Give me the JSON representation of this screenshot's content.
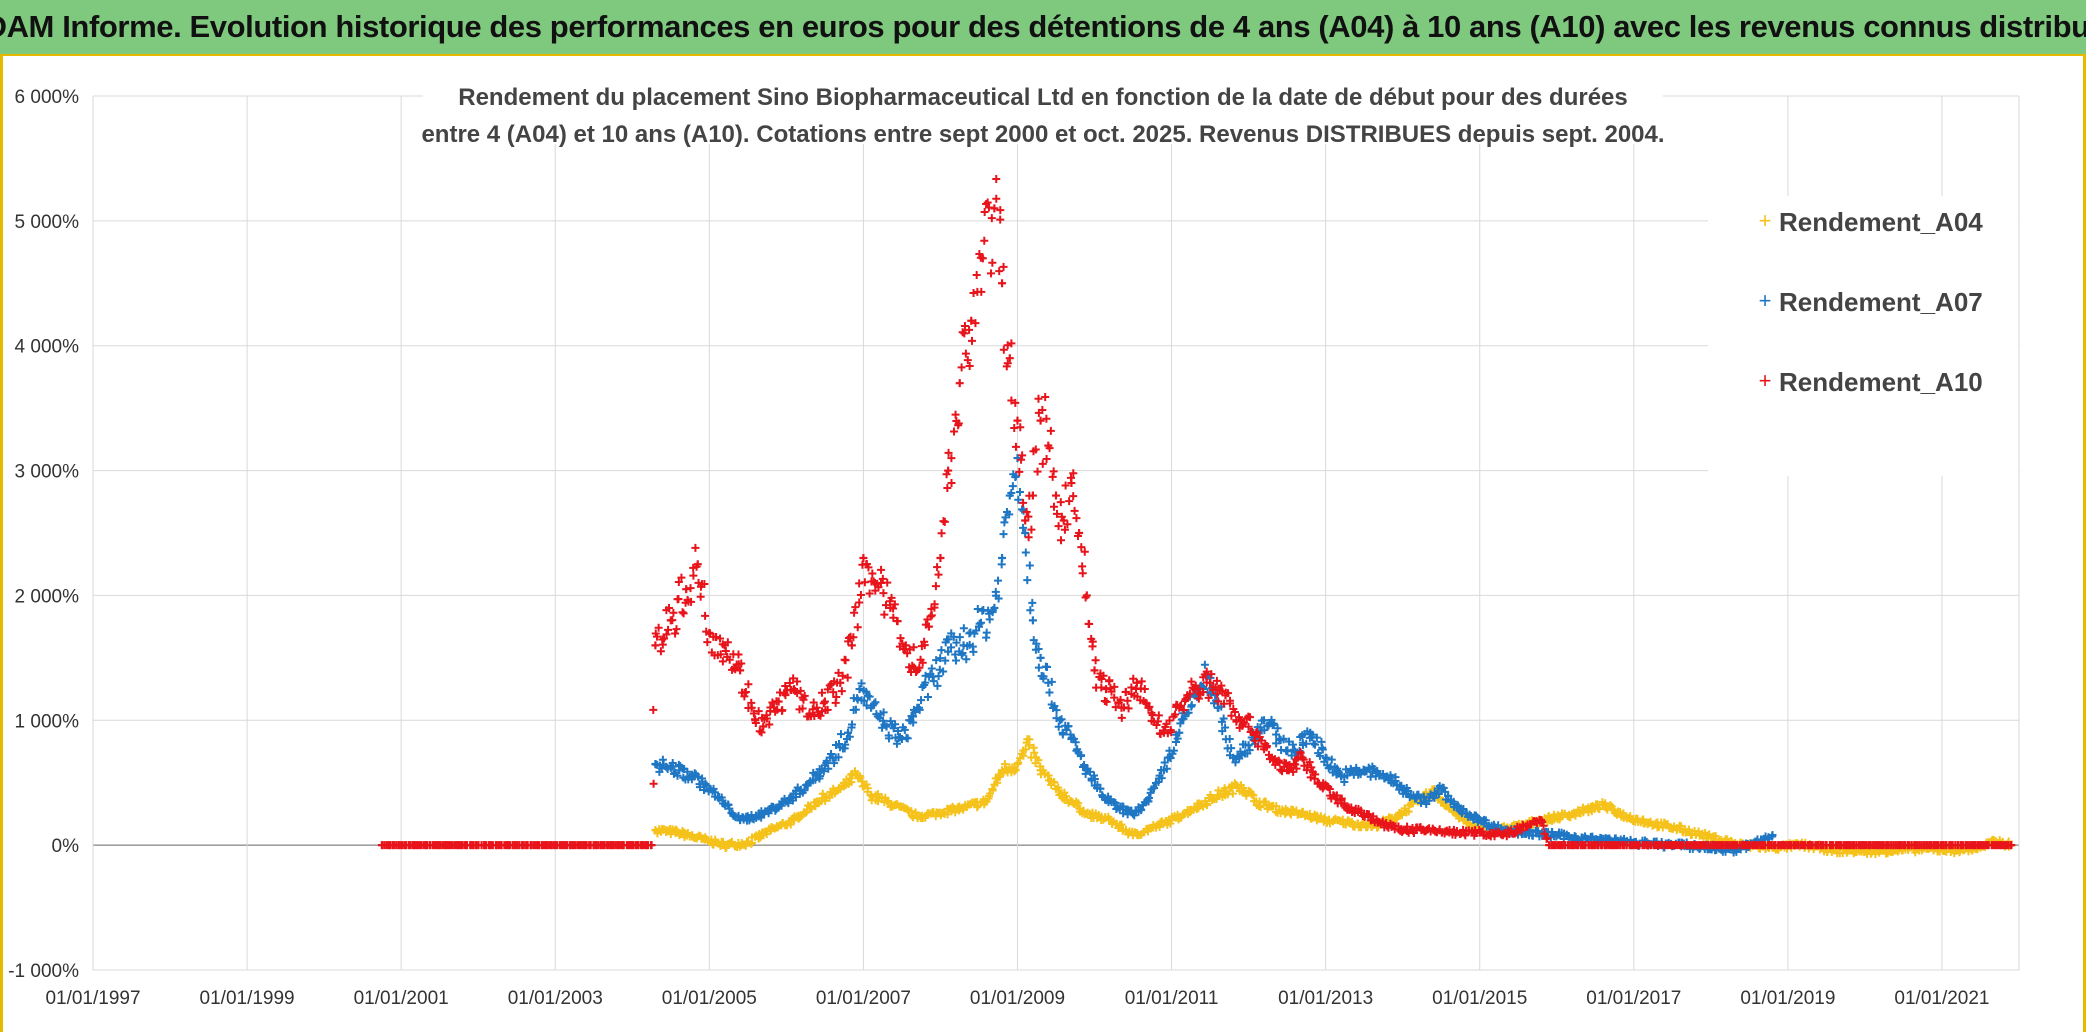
{
  "header": {
    "banner": "ADAM Informe. Evolution historique des performances en euros pour des détentions de 4 ans (A04) à 10 ans (A10) avec les revenus connus distribués"
  },
  "chart_data": {
    "type": "scatter",
    "title_lines": [
      "Rendement du placement Sino Biopharmaceutical Ltd en fonction de la date de début pour des durées",
      "entre 4 (A04) et 10 ans (A10). Cotations entre sept 2000 et oct. 2025. Revenus DISTRIBUES depuis sept. 2004."
    ],
    "xlabel": "",
    "ylabel": "",
    "x_range": [
      1997.0,
      2022.0
    ],
    "ylim": [
      -1000,
      6000
    ],
    "grid": true,
    "legend_position": "top-right",
    "x_ticks": [
      {
        "x": 1997,
        "label": "01/01/1997"
      },
      {
        "x": 1999,
        "label": "01/01/1999"
      },
      {
        "x": 2001,
        "label": "01/01/2001"
      },
      {
        "x": 2003,
        "label": "01/01/2003"
      },
      {
        "x": 2005,
        "label": "01/01/2005"
      },
      {
        "x": 2007,
        "label": "01/01/2007"
      },
      {
        "x": 2009,
        "label": "01/01/2009"
      },
      {
        "x": 2011,
        "label": "01/01/2011"
      },
      {
        "x": 2013,
        "label": "01/01/2013"
      },
      {
        "x": 2015,
        "label": "01/01/2015"
      },
      {
        "x": 2017,
        "label": "01/01/2017"
      },
      {
        "x": 2019,
        "label": "01/01/2019"
      },
      {
        "x": 2021,
        "label": "01/01/2021"
      }
    ],
    "y_ticks": [
      {
        "y": -1000,
        "label": "-1 000%"
      },
      {
        "y": 0,
        "label": "0%"
      },
      {
        "y": 1000,
        "label": "1 000%"
      },
      {
        "y": 2000,
        "label": "2 000%"
      },
      {
        "y": 3000,
        "label": "3 000%"
      },
      {
        "y": 4000,
        "label": "4 000%"
      },
      {
        "y": 5000,
        "label": "5 000%"
      },
      {
        "y": 6000,
        "label": "6 000%"
      }
    ],
    "series": [
      {
        "name": "Rendement_A04",
        "color": "#f5c21b",
        "points": [
          [
            2004.3,
            120
          ],
          [
            2004.6,
            100
          ],
          [
            2004.9,
            50
          ],
          [
            2005.2,
            0
          ],
          [
            2005.5,
            20
          ],
          [
            2005.8,
            120
          ],
          [
            2006.1,
            200
          ],
          [
            2006.4,
            350
          ],
          [
            2006.7,
            450
          ],
          [
            2006.9,
            560
          ],
          [
            2007.1,
            400
          ],
          [
            2007.4,
            320
          ],
          [
            2007.7,
            230
          ],
          [
            2008.0,
            260
          ],
          [
            2008.3,
            300
          ],
          [
            2008.6,
            350
          ],
          [
            2008.8,
            600
          ],
          [
            2009.0,
            650
          ],
          [
            2009.15,
            800
          ],
          [
            2009.3,
            600
          ],
          [
            2009.5,
            450
          ],
          [
            2009.7,
            350
          ],
          [
            2009.9,
            250
          ],
          [
            2010.2,
            200
          ],
          [
            2010.5,
            80
          ],
          [
            2010.8,
            150
          ],
          [
            2011.0,
            200
          ],
          [
            2011.3,
            300
          ],
          [
            2011.6,
            400
          ],
          [
            2011.9,
            480
          ],
          [
            2012.1,
            350
          ],
          [
            2012.4,
            280
          ],
          [
            2012.7,
            250
          ],
          [
            2013.0,
            200
          ],
          [
            2013.3,
            180
          ],
          [
            2013.6,
            150
          ],
          [
            2013.9,
            220
          ],
          [
            2014.2,
            350
          ],
          [
            2014.4,
            430
          ],
          [
            2014.6,
            300
          ],
          [
            2014.9,
            150
          ],
          [
            2015.2,
            120
          ],
          [
            2015.5,
            150
          ],
          [
            2015.8,
            200
          ],
          [
            2016.2,
            250
          ],
          [
            2016.6,
            320
          ],
          [
            2016.9,
            230
          ],
          [
            2017.2,
            180
          ],
          [
            2017.6,
            130
          ],
          [
            2018.0,
            60
          ],
          [
            2018.4,
            0
          ],
          [
            2018.8,
            -20
          ],
          [
            2019.2,
            0
          ],
          [
            2019.6,
            -40
          ],
          [
            2020.0,
            -50
          ],
          [
            2020.4,
            -40
          ],
          [
            2020.8,
            -30
          ],
          [
            2021.2,
            -40
          ],
          [
            2021.5,
            -20
          ],
          [
            2021.7,
            30
          ],
          [
            2021.9,
            0
          ]
        ]
      },
      {
        "name": "Rendement_A07",
        "color": "#1f77c4",
        "points": [
          [
            2004.3,
            650
          ],
          [
            2004.5,
            620
          ],
          [
            2004.8,
            550
          ],
          [
            2005.0,
            450
          ],
          [
            2005.2,
            330
          ],
          [
            2005.4,
            200
          ],
          [
            2005.7,
            250
          ],
          [
            2006.0,
            350
          ],
          [
            2006.3,
            500
          ],
          [
            2006.6,
            700
          ],
          [
            2006.8,
            900
          ],
          [
            2006.95,
            1250
          ],
          [
            2007.1,
            1100
          ],
          [
            2007.3,
            950
          ],
          [
            2007.5,
            850
          ],
          [
            2007.7,
            1100
          ],
          [
            2007.9,
            1350
          ],
          [
            2008.1,
            1550
          ],
          [
            2008.3,
            1600
          ],
          [
            2008.5,
            1750
          ],
          [
            2008.7,
            1900
          ],
          [
            2008.8,
            2300
          ],
          [
            2008.9,
            2800
          ],
          [
            2009.0,
            3100
          ],
          [
            2009.1,
            2500
          ],
          [
            2009.2,
            1800
          ],
          [
            2009.3,
            1500
          ],
          [
            2009.4,
            1300
          ],
          [
            2009.55,
            1000
          ],
          [
            2009.7,
            850
          ],
          [
            2009.9,
            600
          ],
          [
            2010.1,
            400
          ],
          [
            2010.3,
            300
          ],
          [
            2010.5,
            250
          ],
          [
            2010.7,
            350
          ],
          [
            2010.9,
            600
          ],
          [
            2011.1,
            900
          ],
          [
            2011.3,
            1200
          ],
          [
            2011.45,
            1350
          ],
          [
            2011.6,
            1100
          ],
          [
            2011.8,
            700
          ],
          [
            2012.0,
            800
          ],
          [
            2012.2,
            1000
          ],
          [
            2012.4,
            850
          ],
          [
            2012.6,
            750
          ],
          [
            2012.8,
            900
          ],
          [
            2013.0,
            700
          ],
          [
            2013.2,
            550
          ],
          [
            2013.5,
            600
          ],
          [
            2013.8,
            550
          ],
          [
            2014.0,
            450
          ],
          [
            2014.3,
            350
          ],
          [
            2014.5,
            450
          ],
          [
            2014.7,
            300
          ],
          [
            2015.0,
            200
          ],
          [
            2015.3,
            120
          ],
          [
            2015.6,
            100
          ],
          [
            2016.0,
            80
          ],
          [
            2016.4,
            50
          ],
          [
            2016.8,
            30
          ],
          [
            2017.2,
            10
          ],
          [
            2017.6,
            0
          ],
          [
            2018.0,
            -20
          ],
          [
            2018.3,
            -40
          ],
          [
            2018.6,
            20
          ],
          [
            2018.8,
            80
          ]
        ]
      },
      {
        "name": "Rendement_A10",
        "color": "#e8141b",
        "points": [
          [
            2000.75,
            0
          ],
          [
            2001.0,
            0
          ],
          [
            2001.5,
            0
          ],
          [
            2002.0,
            0
          ],
          [
            2002.5,
            0
          ],
          [
            2003.0,
            0
          ],
          [
            2003.5,
            0
          ],
          [
            2004.0,
            0
          ],
          [
            2004.25,
            0
          ],
          [
            2004.3,
            1600
          ],
          [
            2004.5,
            1800
          ],
          [
            2004.7,
            2050
          ],
          [
            2004.85,
            2250
          ],
          [
            2005.0,
            1700
          ],
          [
            2005.2,
            1600
          ],
          [
            2005.4,
            1400
          ],
          [
            2005.55,
            1100
          ],
          [
            2005.7,
            950
          ],
          [
            2005.9,
            1150
          ],
          [
            2006.1,
            1250
          ],
          [
            2006.3,
            1050
          ],
          [
            2006.5,
            1150
          ],
          [
            2006.7,
            1300
          ],
          [
            2006.85,
            1600
          ],
          [
            2007.0,
            2300
          ],
          [
            2007.15,
            2100
          ],
          [
            2007.35,
            1900
          ],
          [
            2007.55,
            1600
          ],
          [
            2007.7,
            1400
          ],
          [
            2007.85,
            1750
          ],
          [
            2008.0,
            2300
          ],
          [
            2008.1,
            3000
          ],
          [
            2008.25,
            3700
          ],
          [
            2008.4,
            4200
          ],
          [
            2008.55,
            4700
          ],
          [
            2008.7,
            5100
          ],
          [
            2008.8,
            4500
          ],
          [
            2008.9,
            3900
          ],
          [
            2009.0,
            3400
          ],
          [
            2009.1,
            2600
          ],
          [
            2009.2,
            2800
          ],
          [
            2009.3,
            3400
          ],
          [
            2009.4,
            3200
          ],
          [
            2009.5,
            2800
          ],
          [
            2009.6,
            2600
          ],
          [
            2009.7,
            2900
          ],
          [
            2009.8,
            2500
          ],
          [
            2009.9,
            2000
          ],
          [
            2010.0,
            1400
          ],
          [
            2010.15,
            1250
          ],
          [
            2010.35,
            1100
          ],
          [
            2010.55,
            1300
          ],
          [
            2010.7,
            1100
          ],
          [
            2010.9,
            900
          ],
          [
            2011.1,
            1100
          ],
          [
            2011.3,
            1250
          ],
          [
            2011.5,
            1300
          ],
          [
            2011.7,
            1200
          ],
          [
            2011.9,
            1000
          ],
          [
            2012.1,
            900
          ],
          [
            2012.3,
            700
          ],
          [
            2012.5,
            600
          ],
          [
            2012.7,
            700
          ],
          [
            2012.9,
            500
          ],
          [
            2013.1,
            400
          ],
          [
            2013.3,
            300
          ],
          [
            2013.5,
            250
          ],
          [
            2013.8,
            150
          ],
          [
            2014.1,
            120
          ],
          [
            2014.4,
            120
          ],
          [
            2014.7,
            100
          ],
          [
            2015.0,
            100
          ],
          [
            2015.3,
            80
          ],
          [
            2015.6,
            150
          ],
          [
            2015.8,
            200
          ],
          [
            2015.9,
            0
          ],
          [
            2016.5,
            0
          ],
          [
            2017.0,
            0
          ],
          [
            2017.5,
            0
          ],
          [
            2018.0,
            0
          ],
          [
            2018.5,
            0
          ],
          [
            2019.0,
            0
          ],
          [
            2019.5,
            0
          ],
          [
            2020.0,
            0
          ],
          [
            2020.5,
            0
          ],
          [
            2021.0,
            0
          ],
          [
            2021.5,
            0
          ],
          [
            2021.9,
            0
          ]
        ]
      }
    ]
  }
}
